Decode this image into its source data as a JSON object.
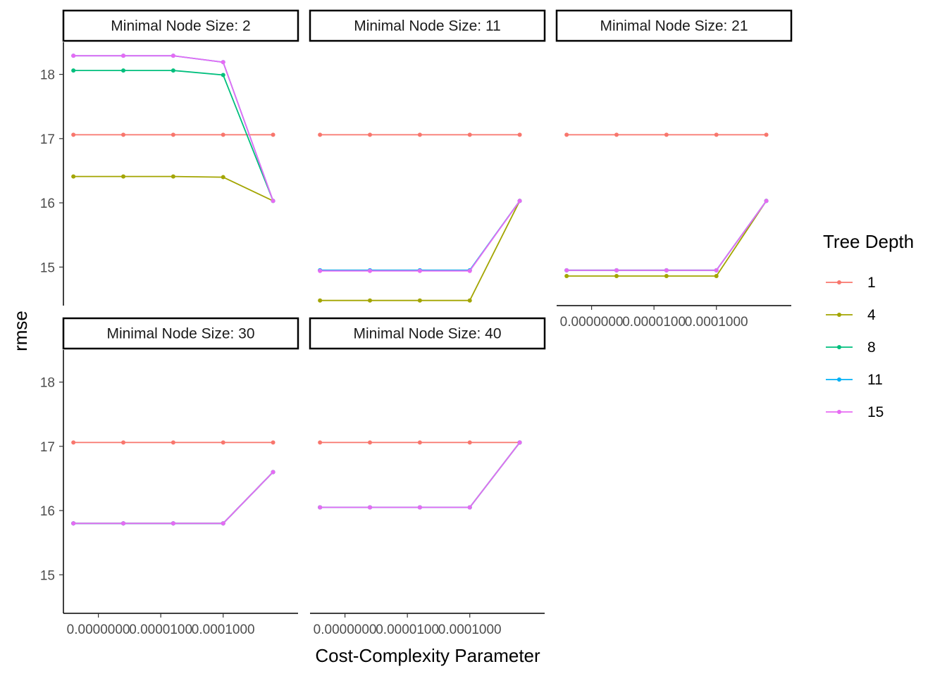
{
  "chart_data": {
    "type": "line",
    "xlabel": "Cost-Complexity Parameter",
    "ylabel": "rmse",
    "x": [
      1,
      2,
      3,
      4,
      5
    ],
    "x_tick_labels": [
      "0.0000000",
      "0.0000100",
      "0.0001000"
    ],
    "xlim": [
      0.8,
      5.5
    ],
    "y_ticks": [
      15,
      16,
      17,
      18
    ],
    "ylim": [
      14.4,
      18.5
    ],
    "grid": false,
    "legend": {
      "title": "Tree Depth",
      "position": "right",
      "entries": [
        "1",
        "4",
        "8",
        "11",
        "15"
      ]
    },
    "series_colors": {
      "1": "#F8766D",
      "4": "#A3A500",
      "8": "#00BF7D",
      "11": "#00B0F6",
      "15": "#E76BF3"
    },
    "panels": [
      {
        "strip": "Minimal Node Size: 2",
        "series": [
          {
            "name": "1",
            "values": [
              17.06,
              17.06,
              17.06,
              17.06,
              17.06
            ]
          },
          {
            "name": "4",
            "values": [
              16.41,
              16.41,
              16.41,
              16.4,
              16.03
            ]
          },
          {
            "name": "8",
            "values": [
              18.06,
              18.06,
              18.06,
              17.99,
              16.03
            ]
          },
          {
            "name": "11",
            "values": [
              18.29,
              18.29,
              18.29,
              18.19,
              16.03
            ]
          },
          {
            "name": "15",
            "values": [
              18.29,
              18.29,
              18.29,
              18.19,
              16.03
            ]
          }
        ]
      },
      {
        "strip": "Minimal Node Size: 11",
        "series": [
          {
            "name": "1",
            "values": [
              17.06,
              17.06,
              17.06,
              17.06,
              17.06
            ]
          },
          {
            "name": "4",
            "values": [
              14.48,
              14.48,
              14.48,
              14.48,
              16.03
            ]
          },
          {
            "name": "8",
            "values": [
              14.95,
              14.95,
              14.95,
              14.95,
              16.03
            ]
          },
          {
            "name": "11",
            "values": [
              14.95,
              14.95,
              14.95,
              14.95,
              16.03
            ]
          },
          {
            "name": "15",
            "values": [
              14.94,
              14.94,
              14.94,
              14.94,
              16.03
            ]
          }
        ]
      },
      {
        "strip": "Minimal Node Size: 21",
        "series": [
          {
            "name": "1",
            "values": [
              17.06,
              17.06,
              17.06,
              17.06,
              17.06
            ]
          },
          {
            "name": "4",
            "values": [
              14.86,
              14.86,
              14.86,
              14.86,
              16.03
            ]
          },
          {
            "name": "8",
            "values": [
              14.95,
              14.95,
              14.95,
              14.95,
              16.03
            ]
          },
          {
            "name": "11",
            "values": [
              14.95,
              14.95,
              14.95,
              14.95,
              16.03
            ]
          },
          {
            "name": "15",
            "values": [
              14.95,
              14.95,
              14.95,
              14.95,
              16.03
            ]
          }
        ]
      },
      {
        "strip": "Minimal Node Size: 30",
        "series": [
          {
            "name": "1",
            "values": [
              17.06,
              17.06,
              17.06,
              17.06,
              17.06
            ]
          },
          {
            "name": "4",
            "values": [
              15.8,
              15.8,
              15.8,
              15.8,
              16.6
            ]
          },
          {
            "name": "8",
            "values": [
              15.8,
              15.8,
              15.8,
              15.8,
              16.6
            ]
          },
          {
            "name": "11",
            "values": [
              15.8,
              15.8,
              15.8,
              15.8,
              16.6
            ]
          },
          {
            "name": "15",
            "values": [
              15.8,
              15.8,
              15.8,
              15.8,
              16.6
            ]
          }
        ]
      },
      {
        "strip": "Minimal Node Size: 40",
        "series": [
          {
            "name": "1",
            "values": [
              17.06,
              17.06,
              17.06,
              17.06,
              17.06
            ]
          },
          {
            "name": "4",
            "values": [
              16.05,
              16.05,
              16.05,
              16.05,
              17.06
            ]
          },
          {
            "name": "8",
            "values": [
              16.05,
              16.05,
              16.05,
              16.05,
              17.06
            ]
          },
          {
            "name": "11",
            "values": [
              16.05,
              16.05,
              16.05,
              16.05,
              17.06
            ]
          },
          {
            "name": "15",
            "values": [
              16.05,
              16.05,
              16.05,
              16.05,
              17.06
            ]
          }
        ]
      }
    ]
  }
}
